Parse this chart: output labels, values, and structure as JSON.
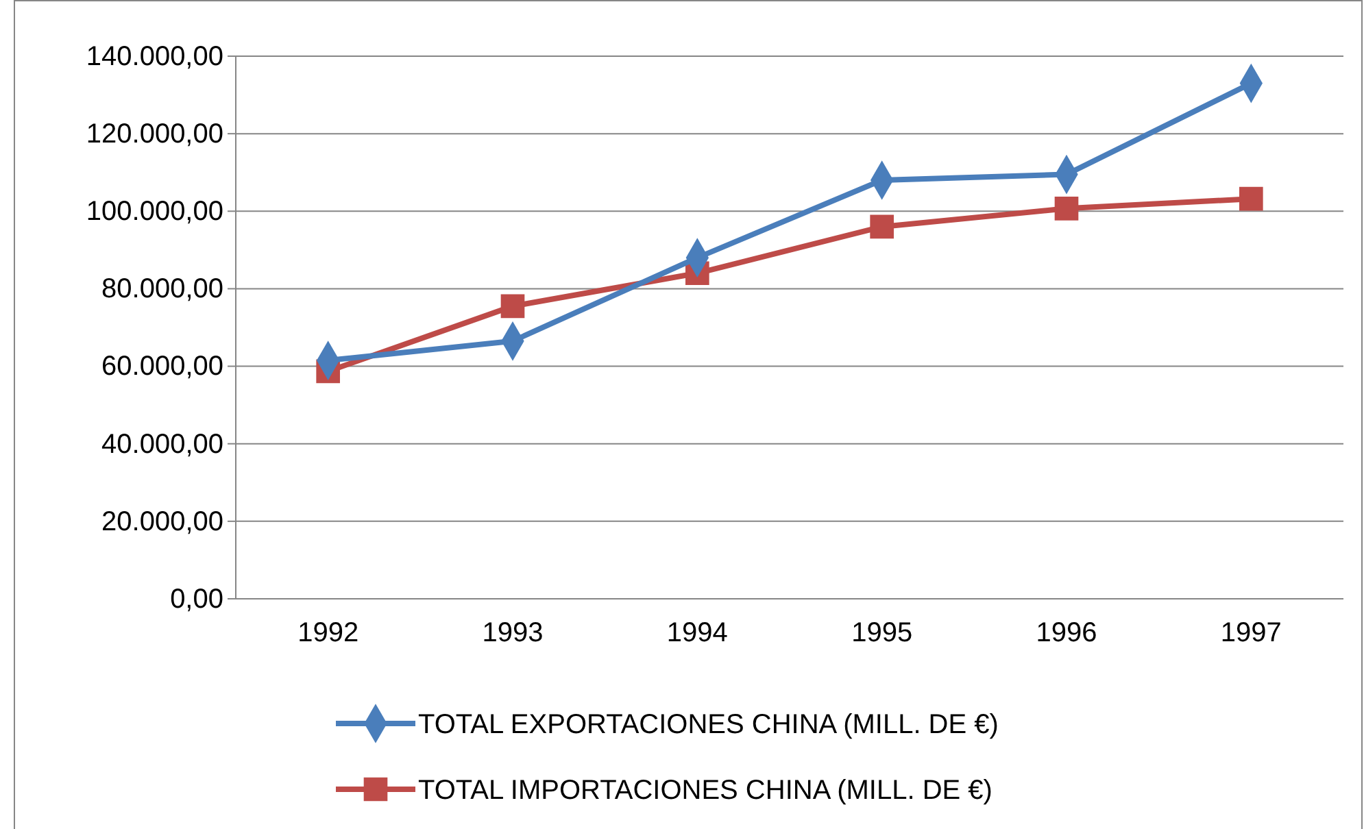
{
  "chart_data": {
    "type": "line",
    "categories": [
      "1992",
      "1993",
      "1994",
      "1995",
      "1996",
      "1997"
    ],
    "series": [
      {
        "name": "TOTAL EXPORTACIONES CHINA (MILL. DE €)",
        "color": "#4a7ebb",
        "marker": "diamond",
        "values": [
          61500,
          66500,
          88000,
          108000,
          109500,
          133000
        ]
      },
      {
        "name": "TOTAL IMPORTACIONES CHINA (MILL. DE €)",
        "color": "#be4b48",
        "marker": "square",
        "values": [
          58700,
          75500,
          84000,
          96000,
          100700,
          103200
        ]
      }
    ],
    "ylim": [
      0,
      140000
    ],
    "yticks": [
      {
        "value": 0,
        "label": "0,00"
      },
      {
        "value": 20000,
        "label": "20.000,00"
      },
      {
        "value": 40000,
        "label": "40.000,00"
      },
      {
        "value": 60000,
        "label": "60.000,00"
      },
      {
        "value": 80000,
        "label": "80.000,00"
      },
      {
        "value": 100000,
        "label": "100.000,00"
      },
      {
        "value": 120000,
        "label": "120.000,00"
      },
      {
        "value": 140000,
        "label": "140.000,00"
      }
    ],
    "grid": "y",
    "legend": "bottom",
    "line_style": "solid"
  }
}
